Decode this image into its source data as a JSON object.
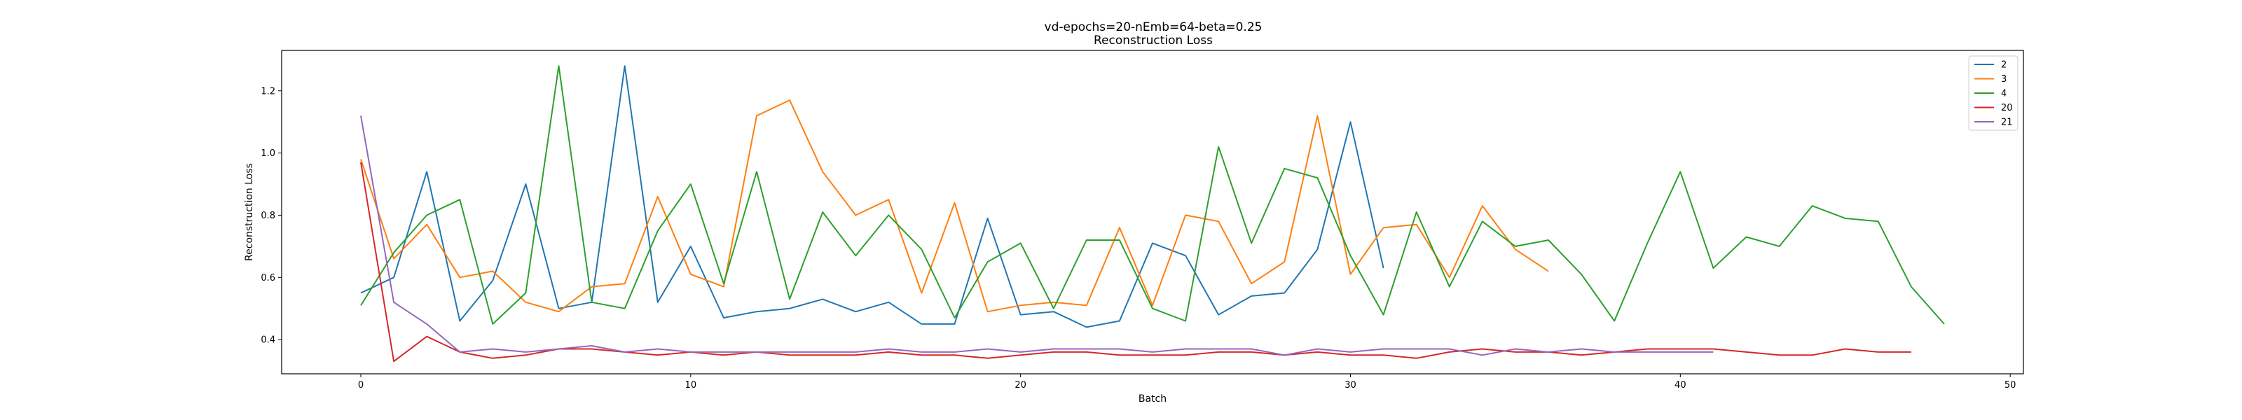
{
  "chart_data": {
    "type": "line",
    "title": "vd-epochs=20-nEmb=64-beta=0.25",
    "subtitle": "Reconstruction Loss",
    "xlabel": "Batch",
    "ylabel": "Reconstruction Loss",
    "xlim": [
      -2.4,
      50.4
    ],
    "ylim": [
      0.29,
      1.33
    ],
    "xticks": [
      0,
      10,
      20,
      30,
      40,
      50
    ],
    "yticks": [
      0.4,
      0.6,
      0.8,
      1.0,
      1.2
    ],
    "ytick_labels": [
      "0.4",
      "0.6",
      "0.8",
      "1.0",
      "1.2"
    ],
    "grid": false,
    "legend_position": "top-right",
    "series": [
      {
        "name": "2",
        "color": "#1f77b4",
        "values": [
          0.55,
          0.6,
          0.94,
          0.46,
          0.59,
          0.9,
          0.5,
          0.52,
          1.28,
          0.52,
          0.7,
          0.47,
          0.49,
          0.5,
          0.53,
          0.49,
          0.52,
          0.45,
          0.45,
          0.79,
          0.48,
          0.49,
          0.44,
          0.46,
          0.71,
          0.67,
          0.48,
          0.54,
          0.55,
          0.69,
          1.1,
          0.63
        ]
      },
      {
        "name": "3",
        "color": "#ff7f0e",
        "values": [
          0.98,
          0.66,
          0.77,
          0.6,
          0.62,
          0.52,
          0.49,
          0.57,
          0.58,
          0.86,
          0.61,
          0.57,
          1.12,
          1.17,
          0.94,
          0.8,
          0.85,
          0.55,
          0.84,
          0.49,
          0.51,
          0.52,
          0.51,
          0.76,
          0.51,
          0.8,
          0.78,
          0.58,
          0.65,
          1.12,
          0.61,
          0.76,
          0.77,
          0.6,
          0.83,
          0.69,
          0.62
        ]
      },
      {
        "name": "4",
        "color": "#2ca02c",
        "values": [
          0.51,
          0.68,
          0.8,
          0.85,
          0.45,
          0.55,
          1.28,
          0.52,
          0.5,
          0.75,
          0.9,
          0.58,
          0.94,
          0.53,
          0.81,
          0.67,
          0.8,
          0.69,
          0.47,
          0.65,
          0.71,
          0.5,
          0.72,
          0.72,
          0.5,
          0.46,
          1.02,
          0.71,
          0.95,
          0.92,
          0.67,
          0.48,
          0.81,
          0.57,
          0.78,
          0.7,
          0.72,
          0.61,
          0.46,
          0.71,
          0.94,
          0.63,
          0.73,
          0.7,
          0.83,
          0.79,
          0.78,
          0.57,
          0.45
        ]
      },
      {
        "name": "20",
        "color": "#d62728",
        "values": [
          0.97,
          0.33,
          0.41,
          0.36,
          0.34,
          0.35,
          0.37,
          0.37,
          0.36,
          0.35,
          0.36,
          0.35,
          0.36,
          0.35,
          0.35,
          0.35,
          0.36,
          0.35,
          0.35,
          0.34,
          0.35,
          0.36,
          0.36,
          0.35,
          0.35,
          0.35,
          0.36,
          0.36,
          0.35,
          0.36,
          0.35,
          0.35,
          0.34,
          0.36,
          0.37,
          0.36,
          0.36,
          0.35,
          0.36,
          0.37,
          0.37,
          0.37,
          0.36,
          0.35,
          0.35,
          0.37,
          0.36,
          0.36
        ]
      },
      {
        "name": "21",
        "color": "#9467bd",
        "values": [
          1.12,
          0.52,
          0.45,
          0.36,
          0.37,
          0.36,
          0.37,
          0.38,
          0.36,
          0.37,
          0.36,
          0.36,
          0.36,
          0.36,
          0.36,
          0.36,
          0.37,
          0.36,
          0.36,
          0.37,
          0.36,
          0.37,
          0.37,
          0.37,
          0.36,
          0.37,
          0.37,
          0.37,
          0.35,
          0.37,
          0.36,
          0.37,
          0.37,
          0.37,
          0.35,
          0.37,
          0.36,
          0.37,
          0.36,
          0.36,
          0.36,
          0.36
        ]
      }
    ]
  }
}
